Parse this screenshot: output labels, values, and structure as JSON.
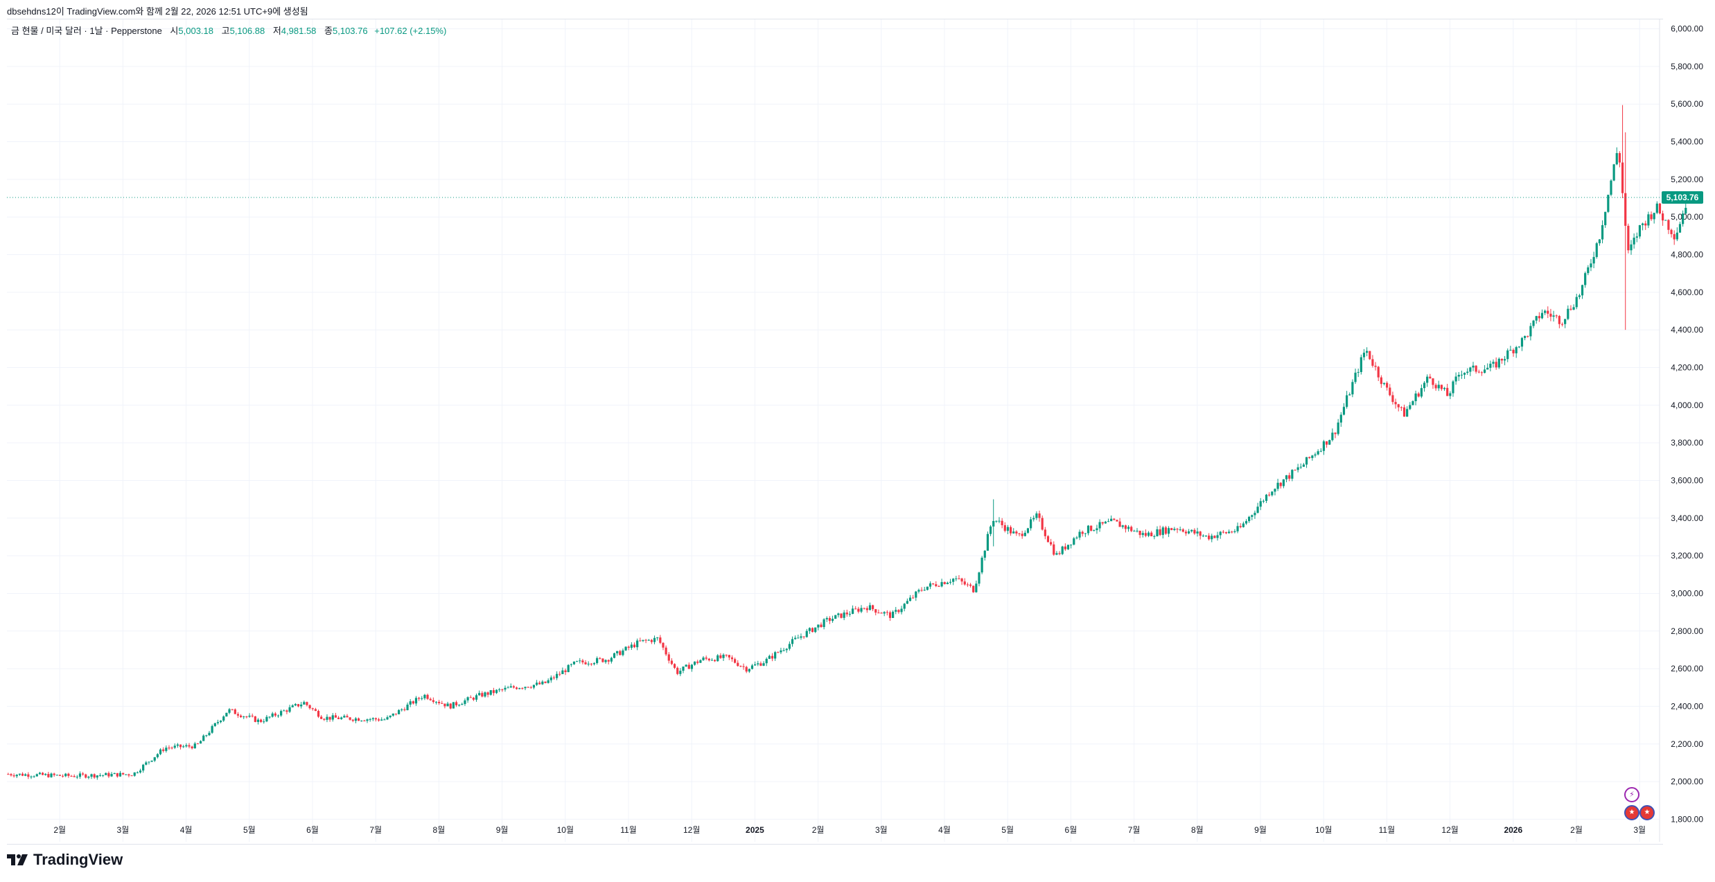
{
  "caption": "dbsehdns12이 TradingView.com와 함께 2월 22, 2026 12:51 UTC+9에 생성됨",
  "legend": {
    "symbol": "금 현물 / 미국 달러 · 1날 · Pepperstone",
    "open_label": "시",
    "open": "5,003.18",
    "high_label": "고",
    "high": "5,106.88",
    "low_label": "저",
    "low": "4,981.58",
    "close_label": "종",
    "close": "5,103.76",
    "change": "+107.62 (+2.15%)"
  },
  "brand": "TradingView",
  "colors": {
    "up": "#089981",
    "down": "#f23645",
    "price_line": "#089981",
    "grid": "#f0f3fa",
    "axis_text": "#131722"
  },
  "icons": [
    "tradingview-logo-icon",
    "lightning-event-icon",
    "us-flag-event-icon"
  ],
  "chart_data": {
    "type": "candlestick",
    "title": "금 현물 / 미국 달러 · 1날 · Pepperstone",
    "y_axis": {
      "position": "right",
      "range": [
        1680,
        6050
      ],
      "ticks": [
        "1,800.00",
        "2,000.00",
        "2,200.00",
        "2,400.00",
        "2,600.00",
        "2,800.00",
        "3,000.00",
        "3,200.00",
        "3,400.00",
        "3,600.00",
        "3,800.00",
        "4,000.00",
        "4,200.00",
        "4,400.00",
        "4,600.00",
        "4,800.00",
        "5,000.00",
        "5,200.00",
        "5,400.00",
        "5,600.00",
        "5,800.00",
        "6,000.00"
      ],
      "tick_values": [
        1800,
        2000,
        2200,
        2400,
        2600,
        2800,
        3000,
        3200,
        3400,
        3600,
        3800,
        4000,
        4200,
        4400,
        4600,
        4800,
        5000,
        5200,
        5400,
        5600,
        5800,
        6000
      ]
    },
    "x_axis": {
      "labels": [
        "2월",
        "3월",
        "4월",
        "5월",
        "6월",
        "7월",
        "8월",
        "9월",
        "10월",
        "11월",
        "12월",
        "2025",
        "2월",
        "3월",
        "4월",
        "5월",
        "6월",
        "7월",
        "8월",
        "9월",
        "10월",
        "11월",
        "12월",
        "2026",
        "2월",
        "3월"
      ],
      "label_month_index": [
        1,
        2,
        3,
        4,
        5,
        6,
        7,
        8,
        9,
        10,
        11,
        12,
        13,
        14,
        15,
        16,
        17,
        18,
        19,
        20,
        21,
        22,
        23,
        24,
        25,
        26
      ],
      "bold_labels": [
        "2025",
        "2026"
      ]
    },
    "last_price": 5103.76,
    "last_price_label": "5,103.76",
    "monthly_close_path": [
      {
        "month": 0,
        "value": 2040
      },
      {
        "month": 1,
        "value": 2030
      },
      {
        "month": 2,
        "value": 2040
      },
      {
        "month": 2.5,
        "value": 2180
      },
      {
        "month": 3,
        "value": 2190
      },
      {
        "month": 3.5,
        "value": 2380
      },
      {
        "month": 4,
        "value": 2320
      },
      {
        "month": 4.7,
        "value": 2420
      },
      {
        "month": 5,
        "value": 2340
      },
      {
        "month": 6,
        "value": 2330
      },
      {
        "month": 6.6,
        "value": 2460
      },
      {
        "month": 7,
        "value": 2400
      },
      {
        "month": 7.5,
        "value": 2460
      },
      {
        "month": 8,
        "value": 2500
      },
      {
        "month": 8.5,
        "value": 2520
      },
      {
        "month": 9,
        "value": 2630
      },
      {
        "month": 9.5,
        "value": 2650
      },
      {
        "month": 10,
        "value": 2740
      },
      {
        "month": 10.3,
        "value": 2760
      },
      {
        "month": 10.6,
        "value": 2580
      },
      {
        "month": 11,
        "value": 2650
      },
      {
        "month": 11.4,
        "value": 2660
      },
      {
        "month": 11.7,
        "value": 2600
      },
      {
        "month": 12,
        "value": 2640
      },
      {
        "month": 12.5,
        "value": 2760
      },
      {
        "month": 13,
        "value": 2860
      },
      {
        "month": 13.6,
        "value": 2930
      },
      {
        "month": 14,
        "value": 2880
      },
      {
        "month": 14.5,
        "value": 3030
      },
      {
        "month": 15,
        "value": 3080
      },
      {
        "month": 15.3,
        "value": 3020
      },
      {
        "month": 15.6,
        "value": 3400
      },
      {
        "month": 16,
        "value": 3300
      },
      {
        "month": 16.3,
        "value": 3410
      },
      {
        "month": 16.6,
        "value": 3200
      },
      {
        "month": 17,
        "value": 3330
      },
      {
        "month": 17.5,
        "value": 3380
      },
      {
        "month": 18,
        "value": 3310
      },
      {
        "month": 18.5,
        "value": 3350
      },
      {
        "month": 19,
        "value": 3300
      },
      {
        "month": 19.5,
        "value": 3340
      },
      {
        "month": 20,
        "value": 3550
      },
      {
        "month": 20.5,
        "value": 3680
      },
      {
        "month": 21,
        "value": 3850
      },
      {
        "month": 21.5,
        "value": 4300
      },
      {
        "month": 21.8,
        "value": 4100
      },
      {
        "month": 22.1,
        "value": 3950
      },
      {
        "month": 22.5,
        "value": 4150
      },
      {
        "month": 22.8,
        "value": 4050
      },
      {
        "month": 23,
        "value": 4180
      },
      {
        "month": 23.5,
        "value": 4200
      },
      {
        "month": 24,
        "value": 4350
      },
      {
        "month": 24.3,
        "value": 4500
      },
      {
        "month": 24.6,
        "value": 4450
      },
      {
        "month": 24.9,
        "value": 4600
      },
      {
        "month": 25.2,
        "value": 4900
      },
      {
        "month": 25.5,
        "value": 5380
      },
      {
        "month": 25.65,
        "value": 4800
      },
      {
        "month": 25.85,
        "value": 4950
      },
      {
        "month": 26.1,
        "value": 5050
      },
      {
        "month": 26.4,
        "value": 4900
      },
      {
        "month": 26.6,
        "value": 5103.76
      }
    ],
    "notable_extremes": [
      {
        "month": 25.55,
        "high": 5595,
        "low": 5100
      },
      {
        "month": 25.6,
        "high": 5450,
        "low": 4400
      },
      {
        "month": 15.6,
        "high": 3500,
        "low": 3250
      }
    ]
  }
}
